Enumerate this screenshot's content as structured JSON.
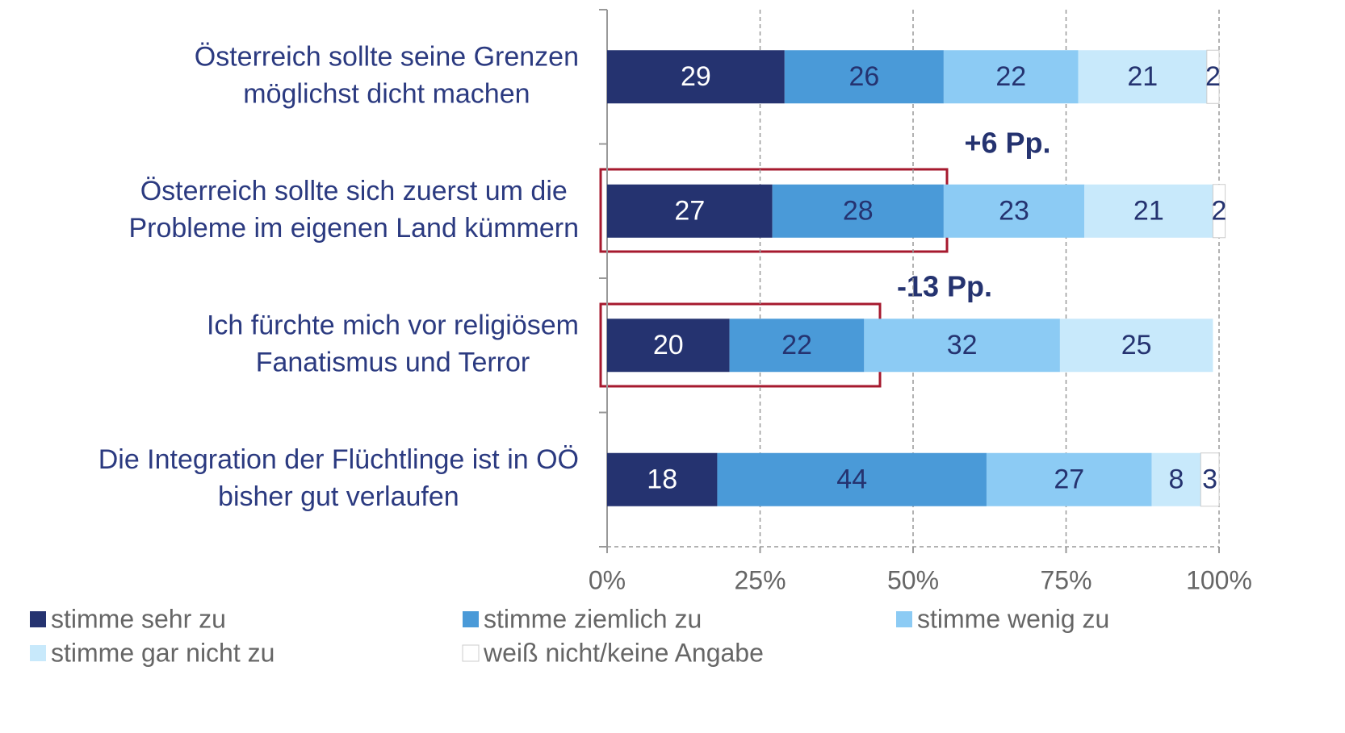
{
  "chart_data": {
    "type": "stacked-bar-horizontal",
    "categories": [
      "Österreich sollte seine Grenzen\nmöglichst dicht machen",
      "Österreich sollte sich zuerst um die\nProbleme im eigenen Land kümmern",
      "Ich fürchte mich vor religiösem\nFanatismus und Terror",
      "Die Integration der Flüchtlinge ist in OÖ\nbisher gut verlaufen"
    ],
    "series": [
      {
        "name": "stimme sehr zu",
        "color": "#253370",
        "values": [
          29,
          27,
          20,
          18
        ]
      },
      {
        "name": "stimme ziemlich zu",
        "color": "#4a9ad8",
        "values": [
          26,
          28,
          22,
          44
        ]
      },
      {
        "name": "stimme wenig zu",
        "color": "#8ccbf4",
        "values": [
          22,
          23,
          32,
          27
        ]
      },
      {
        "name": "stimme gar nicht zu",
        "color": "#c8e9fb",
        "values": [
          21,
          21,
          25,
          8
        ]
      },
      {
        "name": "weiß nicht/keine Angabe",
        "color": "#ffffff",
        "values": [
          2,
          2,
          null,
          3
        ]
      }
    ],
    "xlim": [
      0,
      100
    ],
    "xticks": [
      {
        "value": 0,
        "label": "0%"
      },
      {
        "value": 25,
        "label": "25%"
      },
      {
        "value": 50,
        "label": "50%"
      },
      {
        "value": 75,
        "label": "75%"
      },
      {
        "value": 100,
        "label": "100%"
      }
    ],
    "grid": true,
    "annotations": [
      "+6 Pp.",
      "-13 Pp."
    ]
  }
}
